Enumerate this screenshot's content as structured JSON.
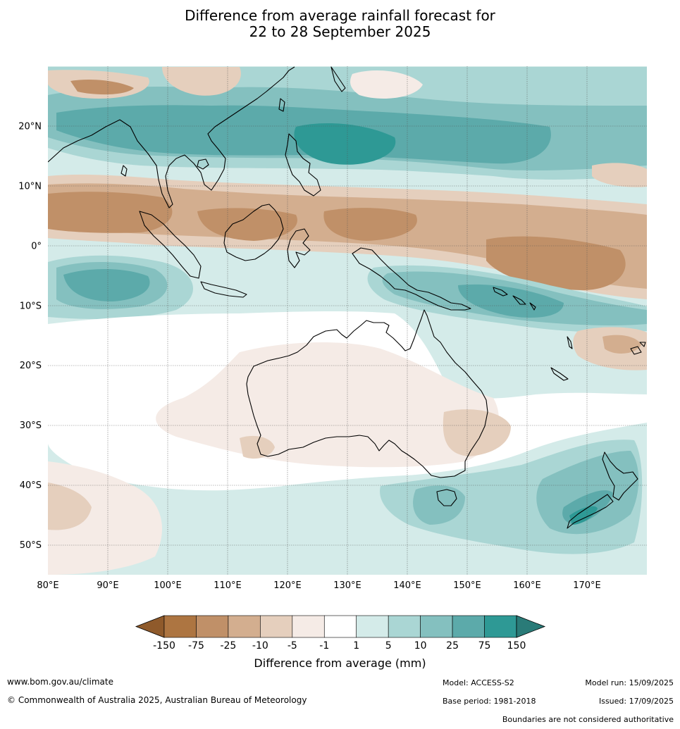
{
  "title_line1": "Difference from average rainfall forecast for",
  "title_line2": "22 to 28 September 2025",
  "map": {
    "lon_range": [
      80,
      180
    ],
    "lat_range": [
      -55,
      30
    ],
    "x_ticks": [
      {
        "value": 80,
        "label": "80°E"
      },
      {
        "value": 90,
        "label": "90°E"
      },
      {
        "value": 100,
        "label": "100°E"
      },
      {
        "value": 110,
        "label": "110°E"
      },
      {
        "value": 120,
        "label": "120°E"
      },
      {
        "value": 130,
        "label": "130°E"
      },
      {
        "value": 140,
        "label": "140°E"
      },
      {
        "value": 150,
        "label": "150°E"
      },
      {
        "value": 160,
        "label": "160°E"
      },
      {
        "value": 170,
        "label": "170°E"
      }
    ],
    "y_ticks": [
      {
        "value": 20,
        "label": "20°N"
      },
      {
        "value": 10,
        "label": "10°N"
      },
      {
        "value": 0,
        "label": "0°"
      },
      {
        "value": -10,
        "label": "10°S"
      },
      {
        "value": -20,
        "label": "20°S"
      },
      {
        "value": -30,
        "label": "30°S"
      },
      {
        "value": -40,
        "label": "40°S"
      },
      {
        "value": -50,
        "label": "50°S"
      }
    ]
  },
  "legend": {
    "title": "Difference from average (mm)",
    "tick_labels": [
      "-150",
      "-75",
      "-25",
      "-10",
      "-5",
      "-1",
      "1",
      "5",
      "10",
      "25",
      "75",
      "150"
    ],
    "colors": [
      "#8f5a2b",
      "#ad7541",
      "#c09068",
      "#d3ae8f",
      "#e5cfbd",
      "#f5ebe6",
      "#ffffff",
      "#d4ebe9",
      "#aad6d4",
      "#84c0bf",
      "#5caaaa",
      "#2e9995",
      "#2a7b78"
    ]
  },
  "footer": {
    "website": "www.bom.gov.au/climate",
    "copyright": "© Commonwealth of Australia 2025, Australian Bureau of Meteorology",
    "model": "Model: ACCESS-S2",
    "base_period": "Base period: 1981-2018",
    "model_run": "Model run: 15/09/2025",
    "issued": "Issued: 17/09/2025",
    "disclaimer": "Boundaries are not considered authoritative"
  }
}
